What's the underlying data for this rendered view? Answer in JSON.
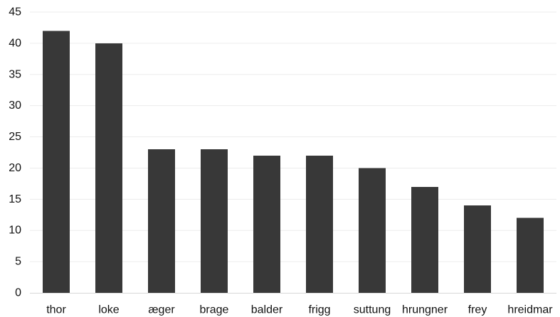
{
  "chart_data": {
    "type": "bar",
    "title": "",
    "xlabel": "",
    "ylabel": "",
    "categories": [
      "thor",
      "loke",
      "æger",
      "brage",
      "balder",
      "frigg",
      "suttung",
      "hrungner",
      "frey",
      "hreidmar"
    ],
    "values": [
      42,
      40,
      23,
      23,
      22,
      22,
      20,
      17,
      14,
      12
    ],
    "ylim": [
      0,
      45
    ],
    "yticks": [
      0,
      5,
      10,
      15,
      20,
      25,
      30,
      35,
      40,
      45
    ],
    "grid": true,
    "legend": "none",
    "bar_color": "#383838"
  }
}
